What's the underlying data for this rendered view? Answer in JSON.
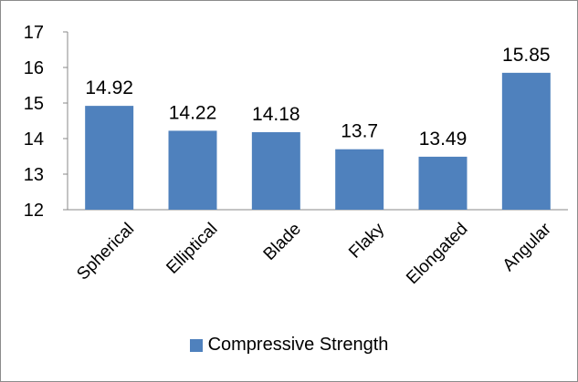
{
  "chart_data": {
    "type": "bar",
    "categories": [
      "Spherical",
      "Elliptical",
      "Blade",
      "Flaky",
      "Elongated",
      "Angular"
    ],
    "series": [
      {
        "name": "Compressive Strength",
        "values": [
          14.92,
          14.22,
          14.18,
          13.7,
          13.49,
          15.85
        ],
        "data_labels": [
          "14.92",
          "14.22",
          "14.18",
          "13.7",
          "13.49",
          "15.85"
        ],
        "color": "#4F81BD"
      }
    ],
    "title": "",
    "xlabel": "",
    "ylabel": "",
    "ylim": [
      12,
      17
    ],
    "yticks": [
      12,
      13,
      14,
      15,
      16,
      17
    ],
    "grid": false,
    "legend_position": "bottom"
  }
}
